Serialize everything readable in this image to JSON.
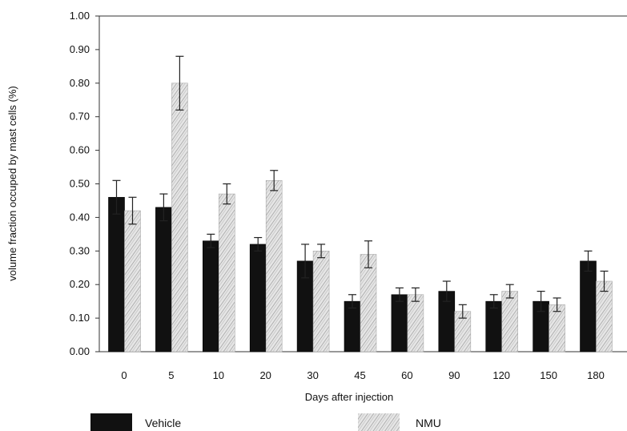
{
  "chart_data": {
    "type": "bar",
    "xlabel": "Days after injection",
    "ylabel": "volume fraction occuped by mast cells (%)",
    "ylim": [
      0,
      1.0
    ],
    "yticks": [
      "0.00",
      "0.10",
      "0.20",
      "0.30",
      "0.40",
      "0.50",
      "0.60",
      "0.70",
      "0.80",
      "0.90",
      "1.00"
    ],
    "categories": [
      "0",
      "5",
      "10",
      "20",
      "30",
      "45",
      "60",
      "90",
      "120",
      "150",
      "180"
    ],
    "series": [
      {
        "name": "Vehicle",
        "color": "#111111",
        "values": [
          0.46,
          0.43,
          0.33,
          0.32,
          0.27,
          0.15,
          0.17,
          0.18,
          0.15,
          0.15,
          0.27
        ],
        "errors": [
          0.05,
          0.04,
          0.02,
          0.02,
          0.05,
          0.02,
          0.02,
          0.03,
          0.02,
          0.03,
          0.03
        ]
      },
      {
        "name": "NMU",
        "color": "#d9d9d9",
        "values": [
          0.42,
          0.8,
          0.47,
          0.51,
          0.3,
          0.29,
          0.17,
          0.12,
          0.18,
          0.14,
          0.21
        ],
        "errors": [
          0.04,
          0.08,
          0.03,
          0.03,
          0.02,
          0.04,
          0.02,
          0.02,
          0.02,
          0.02,
          0.03
        ]
      }
    ],
    "legend": {
      "position": "bottom"
    },
    "grid": false
  }
}
